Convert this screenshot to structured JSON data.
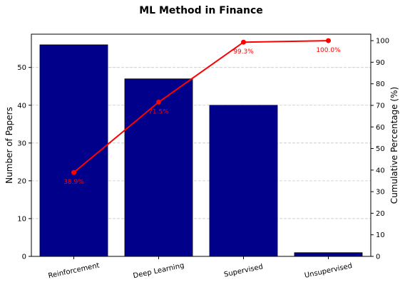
{
  "chart_data": {
    "type": "bar",
    "title": "ML Method in Finance",
    "categories": [
      "Reinforcement",
      "Deep Learning",
      "Supervised",
      "Unsupervised"
    ],
    "series": [
      {
        "values": [
          56,
          47,
          40,
          1
        ]
      }
    ],
    "cumulative_line": {
      "values": [
        38.9,
        71.5,
        99.3,
        100.0
      ],
      "labels": [
        "38.9%",
        "71.5%",
        "99.3%",
        "100.0%"
      ]
    },
    "ylabel": "Number of Papers",
    "ylabel_right": "Cumulative Percentage (%)",
    "xlabel": "",
    "ylim": [
      0,
      58.8
    ],
    "ylim_right": [
      0,
      103
    ],
    "yticks": [
      0,
      10,
      20,
      30,
      40,
      50
    ],
    "yticks_right": [
      0,
      10,
      20,
      30,
      40,
      50,
      60,
      70,
      80,
      90,
      100
    ],
    "grid": "horizontal dashed",
    "colors": {
      "bar": "#00008b",
      "line": "#ff0000",
      "grid": "#c8c8c8"
    }
  }
}
